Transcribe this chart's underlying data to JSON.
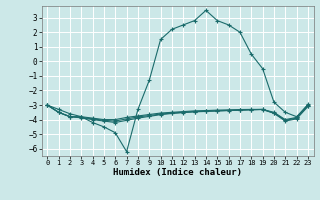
{
  "title": "",
  "xlabel": "Humidex (Indice chaleur)",
  "ylabel": "",
  "background_color": "#cce8e8",
  "grid_color": "#ffffff",
  "line_color": "#1a6b6b",
  "xlim": [
    -0.5,
    23.5
  ],
  "ylim": [
    -6.5,
    3.8
  ],
  "xticks": [
    0,
    1,
    2,
    3,
    4,
    5,
    6,
    7,
    8,
    9,
    10,
    11,
    12,
    13,
    14,
    15,
    16,
    17,
    18,
    19,
    20,
    21,
    22,
    23
  ],
  "yticks": [
    -6,
    -5,
    -4,
    -3,
    -2,
    -1,
    0,
    1,
    2,
    3
  ],
  "lines": [
    {
      "x": [
        0,
        1,
        2,
        3,
        4,
        5,
        6,
        7,
        8,
        9,
        10,
        11,
        12,
        13,
        14,
        15,
        16,
        17,
        18,
        19,
        20,
        21,
        22,
        23
      ],
      "y": [
        -3.0,
        -3.3,
        -3.6,
        -3.8,
        -4.2,
        -4.5,
        -4.9,
        -6.2,
        -3.3,
        -1.3,
        1.5,
        2.2,
        2.5,
        2.8,
        3.5,
        2.8,
        2.5,
        2.0,
        0.5,
        -0.5,
        -2.8,
        -3.5,
        -3.8,
        -3.0
      ]
    },
    {
      "x": [
        0,
        1,
        2,
        3,
        4,
        5,
        6,
        7,
        8,
        9,
        10,
        11,
        12,
        13,
        14,
        15,
        16,
        17,
        18,
        19,
        20,
        21,
        22,
        23
      ],
      "y": [
        -3.0,
        -3.5,
        -3.8,
        -3.8,
        -3.9,
        -4.0,
        -4.0,
        -3.85,
        -3.75,
        -3.65,
        -3.55,
        -3.5,
        -3.45,
        -3.4,
        -3.38,
        -3.35,
        -3.33,
        -3.31,
        -3.3,
        -3.3,
        -3.5,
        -4.0,
        -3.85,
        -2.95
      ]
    },
    {
      "x": [
        0,
        1,
        2,
        3,
        4,
        5,
        6,
        7,
        8,
        9,
        10,
        11,
        12,
        13,
        14,
        15,
        16,
        17,
        18,
        19,
        20,
        21,
        22,
        23
      ],
      "y": [
        -3.0,
        -3.5,
        -3.8,
        -3.85,
        -3.95,
        -4.05,
        -4.1,
        -3.95,
        -3.82,
        -3.72,
        -3.62,
        -3.55,
        -3.5,
        -3.45,
        -3.42,
        -3.4,
        -3.37,
        -3.35,
        -3.32,
        -3.3,
        -3.55,
        -4.05,
        -3.9,
        -3.05
      ]
    },
    {
      "x": [
        0,
        1,
        2,
        3,
        4,
        5,
        6,
        7,
        8,
        9,
        10,
        11,
        12,
        13,
        14,
        15,
        16,
        17,
        18,
        19,
        20,
        21,
        22,
        23
      ],
      "y": [
        -3.0,
        -3.5,
        -3.8,
        -3.88,
        -4.0,
        -4.1,
        -4.2,
        -4.05,
        -3.9,
        -3.78,
        -3.66,
        -3.58,
        -3.52,
        -3.47,
        -3.44,
        -3.41,
        -3.38,
        -3.36,
        -3.33,
        -3.31,
        -3.57,
        -4.1,
        -3.95,
        -3.1
      ]
    }
  ]
}
